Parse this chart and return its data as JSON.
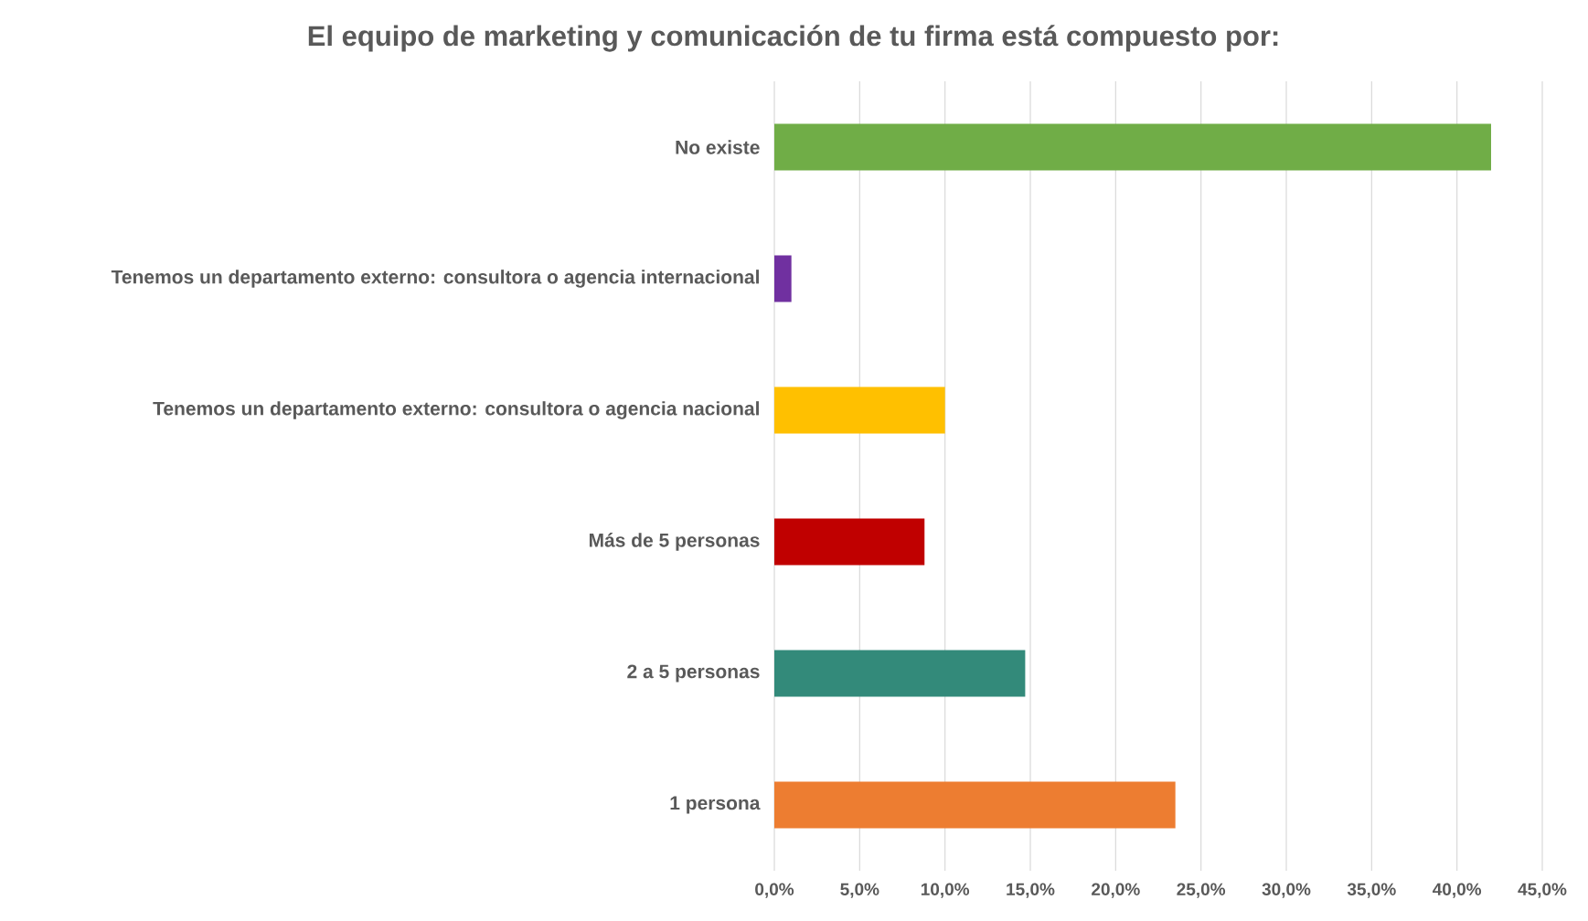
{
  "chart_data": {
    "type": "bar",
    "orientation": "horizontal",
    "title": "El equipo de marketing y comunicación de tu firma está compuesto por:",
    "categories": [
      "No existe",
      "Tenemos un departamento externo: consultora o agencia internacional",
      "Tenemos un departamento externo: consultora o agencia nacional",
      "Más de 5 personas",
      "2 a 5 personas",
      "1 persona"
    ],
    "values": [
      42.0,
      1.0,
      10.0,
      8.8,
      14.7,
      23.5
    ],
    "colors": [
      "#70ad47",
      "#7030a0",
      "#ffc000",
      "#c00000",
      "#338a7a",
      "#ed7d31"
    ],
    "xlim": [
      0,
      45
    ],
    "xticks": [
      {
        "value": 0,
        "label": "0,0%"
      },
      {
        "value": 5,
        "label": "5,0%"
      },
      {
        "value": 10,
        "label": "10,0%"
      },
      {
        "value": 15,
        "label": "15,0%"
      },
      {
        "value": 20,
        "label": "20,0%"
      },
      {
        "value": 25,
        "label": "25,0%"
      },
      {
        "value": 30,
        "label": "30,0%"
      },
      {
        "value": 35,
        "label": "35,0%"
      },
      {
        "value": 40,
        "label": "40,0%"
      },
      {
        "value": 45,
        "label": "45,0%"
      }
    ],
    "grid": "x"
  }
}
